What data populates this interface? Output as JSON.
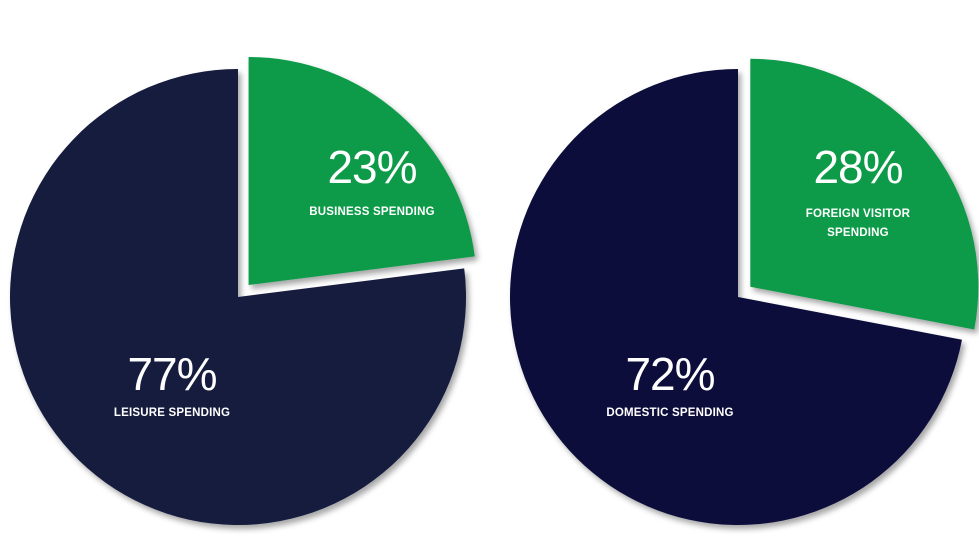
{
  "chart_data": [
    {
      "type": "pie",
      "slices": [
        {
          "label": "BUSINESS SPENDING",
          "value": 23,
          "value_text": "23%",
          "color": "#0f9b4a",
          "exploded": true
        },
        {
          "label": "LEISURE SPENDING",
          "value": 77,
          "value_text": "77%",
          "color": "#141b3d",
          "exploded": false
        }
      ]
    },
    {
      "type": "pie",
      "slices": [
        {
          "label": "FOREIGN VISITOR SPENDING",
          "label_lines": [
            "FOREIGN VISITOR",
            "SPENDING"
          ],
          "value": 28,
          "value_text": "28%",
          "color": "#0f9b4a",
          "exploded": true
        },
        {
          "label": "DOMESTIC SPENDING",
          "value": 72,
          "value_text": "72%",
          "color": "#0a0f3a",
          "exploded": false
        }
      ]
    }
  ]
}
